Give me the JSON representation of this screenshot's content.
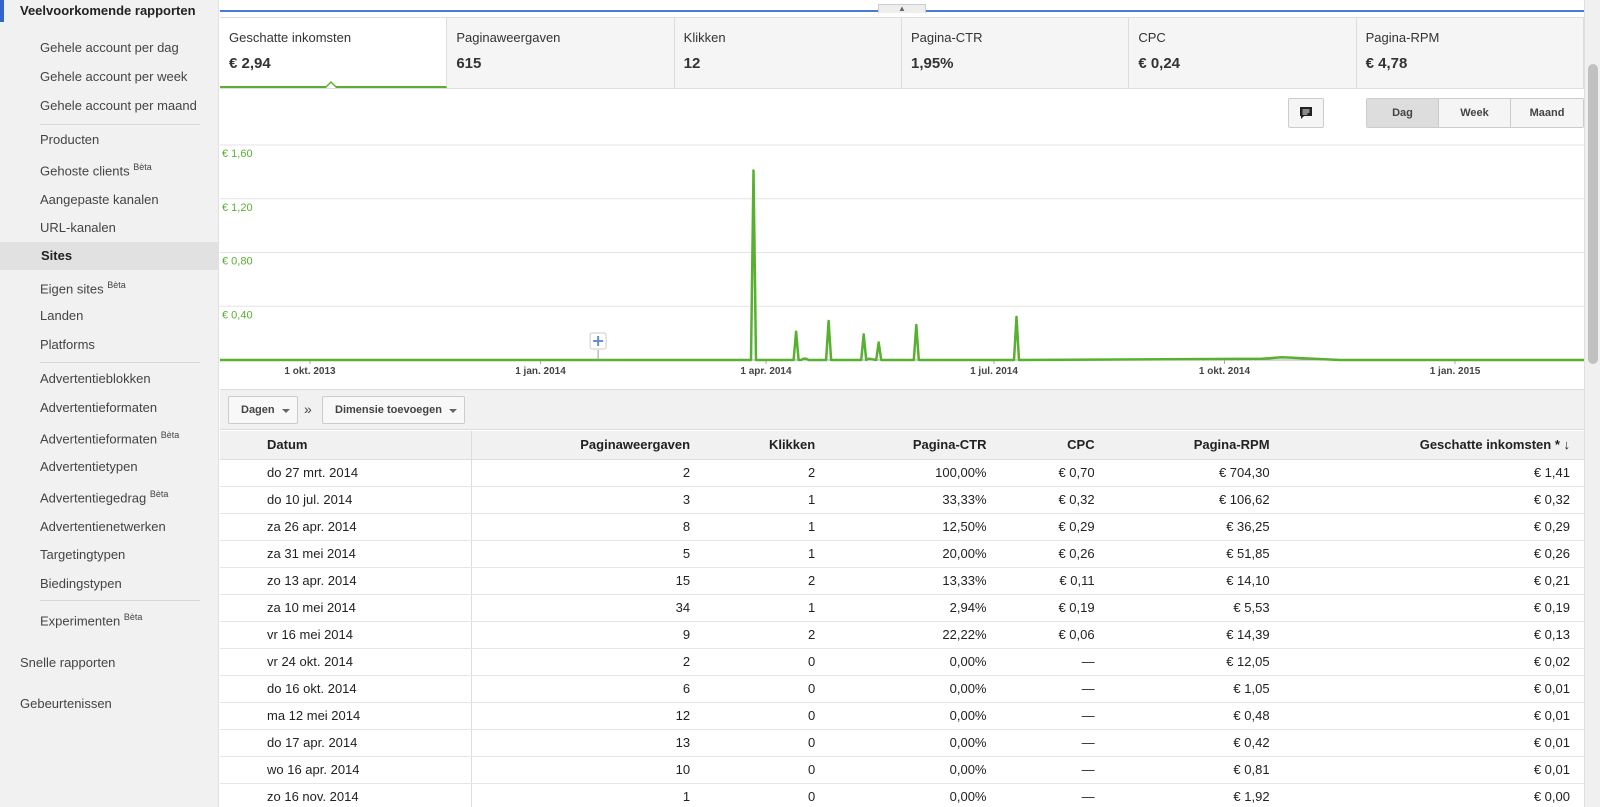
{
  "sidebar": {
    "section_title": "Veelvoorkomende rapporten",
    "items": [
      {
        "label": "Gehele account per dag",
        "badge": ""
      },
      {
        "label": "Gehele account per week",
        "badge": ""
      },
      {
        "label": "Gehele account per maand",
        "badge": ""
      },
      {
        "label": "Producten",
        "badge": ""
      },
      {
        "label": "Gehoste clients",
        "badge": "Bèta"
      },
      {
        "label": "Aangepaste kanalen",
        "badge": ""
      },
      {
        "label": "URL-kanalen",
        "badge": ""
      },
      {
        "label": "Sites",
        "badge": ""
      },
      {
        "label": "Eigen sites",
        "badge": "Bèta"
      },
      {
        "label": "Landen",
        "badge": ""
      },
      {
        "label": "Platforms",
        "badge": ""
      },
      {
        "label": "Advertentieblokken",
        "badge": ""
      },
      {
        "label": "Advertentieformaten",
        "badge": ""
      },
      {
        "label": "Advertentieformaten",
        "badge": "Bèta"
      },
      {
        "label": "Advertentietypen",
        "badge": ""
      },
      {
        "label": "Advertentiegedrag",
        "badge": "Bèta"
      },
      {
        "label": "Advertentienetwerken",
        "badge": ""
      },
      {
        "label": "Targetingtypen",
        "badge": ""
      },
      {
        "label": "Biedingstypen",
        "badge": ""
      },
      {
        "label": "Experimenten",
        "badge": "Bèta"
      }
    ],
    "active_item": "Sites",
    "bottom_items": [
      "Snelle rapporten",
      "Gebeurtenissen"
    ]
  },
  "metrics": [
    {
      "label": "Geschatte inkomsten",
      "value": "€ 2,94"
    },
    {
      "label": "Paginaweergaven",
      "value": "615"
    },
    {
      "label": "Klikken",
      "value": "12"
    },
    {
      "label": "Pagina-CTR",
      "value": "1,95%"
    },
    {
      "label": "CPC",
      "value": "€ 0,24"
    },
    {
      "label": "Pagina-RPM",
      "value": "€ 4,78"
    }
  ],
  "period_buttons": {
    "day": "Dag",
    "week": "Week",
    "month": "Maand"
  },
  "chart_data": {
    "type": "line",
    "color": "#58b030",
    "y_ticks": [
      "€ 1,60",
      "€ 1,20",
      "€ 0,80",
      "€ 0,40"
    ],
    "ylim": [
      0,
      1.6
    ],
    "x_ticks": [
      "1 okt. 2013",
      "1 jan. 2014",
      "1 apr. 2014",
      "1 jul. 2014",
      "1 okt. 2014",
      "1 jan. 2015"
    ],
    "series": [
      {
        "values_by_date": [
          [
            "2014-03-26",
            0
          ],
          [
            "2014-03-27",
            1.41
          ],
          [
            "2014-03-28",
            0
          ],
          [
            "2014-04-15",
            0
          ],
          [
            "2014-04-16",
            0.01
          ],
          [
            "2014-04-17",
            0.01
          ],
          [
            "2014-04-18",
            0
          ],
          [
            "2014-04-12",
            0
          ],
          [
            "2014-04-13",
            0.21
          ],
          [
            "2014-04-14",
            0
          ],
          [
            "2014-04-25",
            0
          ],
          [
            "2014-04-26",
            0.29
          ],
          [
            "2014-04-27",
            0
          ],
          [
            "2014-05-09",
            0
          ],
          [
            "2014-05-10",
            0.19
          ],
          [
            "2014-05-11",
            0
          ],
          [
            "2014-05-12",
            0.01
          ],
          [
            "2014-05-15",
            0
          ],
          [
            "2014-05-16",
            0.13
          ],
          [
            "2014-05-17",
            0
          ],
          [
            "2014-05-30",
            0
          ],
          [
            "2014-05-31",
            0.26
          ],
          [
            "2014-06-01",
            0
          ],
          [
            "2014-07-09",
            0
          ],
          [
            "2014-07-10",
            0.32
          ],
          [
            "2014-07-11",
            0
          ],
          [
            "2014-10-16",
            0.01
          ],
          [
            "2014-10-24",
            0.02
          ],
          [
            "2014-11-16",
            0
          ]
        ]
      }
    ]
  },
  "dimension_bar": {
    "primary": "Dagen",
    "separator": "»",
    "add": "Dimensie toevoegen"
  },
  "table": {
    "headers": [
      "Datum",
      "Paginaweergaven",
      "Klikken",
      "Pagina-CTR",
      "CPC",
      "Pagina-RPM",
      "Geschatte inkomsten * ↓"
    ],
    "rows": [
      [
        "do 27 mrt. 2014",
        "2",
        "2",
        "100,00%",
        "€ 0,70",
        "€ 704,30",
        "€ 1,41"
      ],
      [
        "do 10 jul. 2014",
        "3",
        "1",
        "33,33%",
        "€ 0,32",
        "€ 106,62",
        "€ 0,32"
      ],
      [
        "za 26 apr. 2014",
        "8",
        "1",
        "12,50%",
        "€ 0,29",
        "€ 36,25",
        "€ 0,29"
      ],
      [
        "za 31 mei 2014",
        "5",
        "1",
        "20,00%",
        "€ 0,26",
        "€ 51,85",
        "€ 0,26"
      ],
      [
        "zo 13 apr. 2014",
        "15",
        "2",
        "13,33%",
        "€ 0,11",
        "€ 14,10",
        "€ 0,21"
      ],
      [
        "za 10 mei 2014",
        "34",
        "1",
        "2,94%",
        "€ 0,19",
        "€ 5,53",
        "€ 0,19"
      ],
      [
        "vr 16 mei 2014",
        "9",
        "2",
        "22,22%",
        "€ 0,06",
        "€ 14,39",
        "€ 0,13"
      ],
      [
        "vr 24 okt. 2014",
        "2",
        "0",
        "0,00%",
        "—",
        "€ 12,05",
        "€ 0,02"
      ],
      [
        "do 16 okt. 2014",
        "6",
        "0",
        "0,00%",
        "—",
        "€ 1,05",
        "€ 0,01"
      ],
      [
        "ma 12 mei 2014",
        "12",
        "0",
        "0,00%",
        "—",
        "€ 0,48",
        "€ 0,01"
      ],
      [
        "do 17 apr. 2014",
        "13",
        "0",
        "0,00%",
        "—",
        "€ 0,42",
        "€ 0,01"
      ],
      [
        "wo 16 apr. 2014",
        "10",
        "0",
        "0,00%",
        "—",
        "€ 0,81",
        "€ 0,01"
      ],
      [
        "zo 16 nov. 2014",
        "1",
        "0",
        "0,00%",
        "—",
        "€ 1,92",
        "€ 0,00"
      ]
    ]
  }
}
